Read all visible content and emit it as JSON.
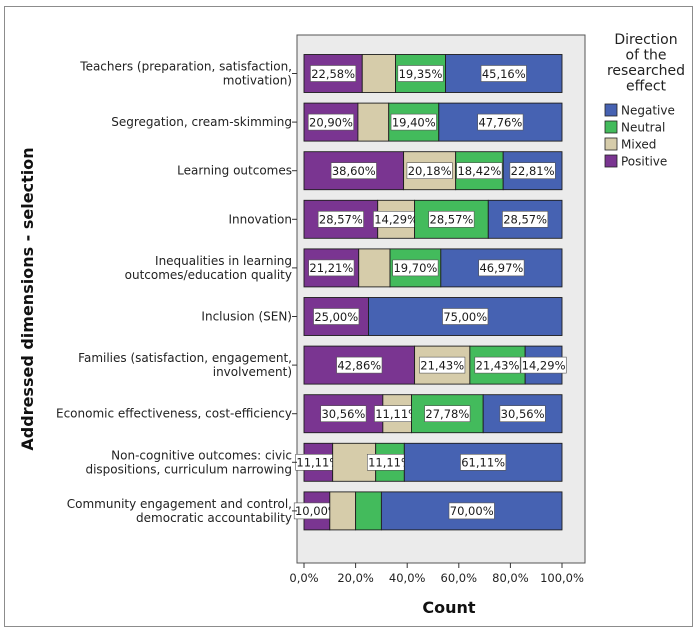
{
  "chart_data": {
    "type": "bar",
    "orientation": "horizontal",
    "stacked": "percent",
    "xlabel": "Count",
    "ylabel": "Addressed dimensions - selection",
    "xlim": [
      0,
      100
    ],
    "x_ticks": [
      "0,0%",
      "20,0%",
      "40,0%",
      "60,0%",
      "80,0%",
      "100,0%"
    ],
    "x_tick_values": [
      0,
      20,
      40,
      60,
      80,
      100
    ],
    "grid": false,
    "legend": {
      "title_lines": [
        "Direction",
        "of the",
        "researched",
        "effect"
      ],
      "placement": "right",
      "entries": [
        "Negative",
        "Neutral",
        "Mixed",
        "Positive"
      ]
    },
    "colors": {
      "Negative": "#4662b2",
      "Neutral": "#43bb5c",
      "Mixed": "#d6ccaa",
      "Positive": "#7a3591",
      "plot_background": "#ebebeb"
    },
    "categories": [
      [
        "Teachers (preparation, satisfaction,",
        "motivation)"
      ],
      [
        "Segregation, cream-skimming"
      ],
      [
        "Learning outcomes"
      ],
      [
        "Innovation"
      ],
      [
        "Inequalities in learning",
        "outcomes/education quality"
      ],
      [
        "Inclusion (SEN)"
      ],
      [
        "Families (satisfaction, engagement,",
        "involvement)"
      ],
      [
        "Economic effectiveness, cost-efficiency"
      ],
      [
        "Non-cognitive outcomes: civic",
        "dispositions, curriculum narrowing"
      ],
      [
        "Community engagement and control,",
        "democratic accountability"
      ]
    ],
    "stack_order": [
      "Positive",
      "Mixed",
      "Neutral",
      "Negative"
    ],
    "series": [
      {
        "name": "Positive",
        "values": [
          22.58,
          20.9,
          38.6,
          28.57,
          21.21,
          25.0,
          42.86,
          30.56,
          11.11,
          10.0
        ],
        "labels": [
          "22,58%",
          "20,90%",
          "38,60%",
          "28,57%",
          "21,21%",
          "25,00%",
          "42,86%",
          "30,56%",
          "11,11%",
          "10,00%"
        ]
      },
      {
        "name": "Mixed",
        "values": [
          12.91,
          11.94,
          20.18,
          14.29,
          12.12,
          0,
          21.43,
          11.11,
          16.67,
          10.0
        ],
        "labels": [
          "",
          "",
          "20,18%",
          "14,29%",
          "",
          "",
          "21,43%",
          "11,11%",
          "",
          ""
        ]
      },
      {
        "name": "Neutral",
        "values": [
          19.35,
          19.4,
          18.42,
          28.57,
          19.7,
          0,
          21.43,
          27.78,
          11.11,
          10.0
        ],
        "labels": [
          "19,35%",
          "19,40%",
          "18,42%",
          "28,57%",
          "19,70%",
          "",
          "21,43%",
          "27,78%",
          "11,11%",
          ""
        ]
      },
      {
        "name": "Negative",
        "values": [
          45.16,
          47.76,
          22.81,
          28.57,
          46.97,
          75.0,
          14.29,
          30.56,
          61.11,
          70.0
        ],
        "labels": [
          "45,16%",
          "47,76%",
          "22,81%",
          "28,57%",
          "46,97%",
          "75,00%",
          "14,29%",
          "30,56%",
          "61,11%",
          "70,00%"
        ]
      }
    ]
  }
}
